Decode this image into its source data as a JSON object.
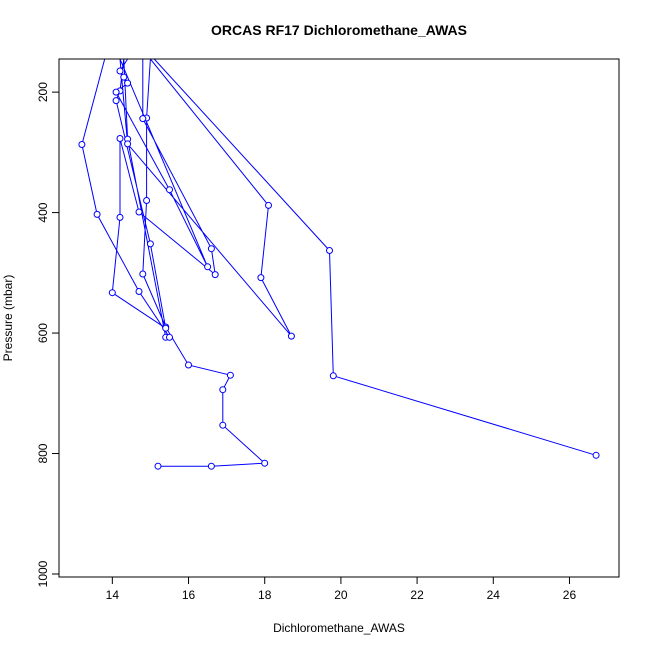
{
  "chart_data": {
    "type": "line",
    "title": "ORCAS RF17 Dichloromethane_AWAS",
    "xlabel": "Dichloromethane_AWAS",
    "ylabel": "Pressure (mbar)",
    "xlim": [
      12.6,
      27.3
    ],
    "ylim": [
      1005,
      145
    ],
    "y_reversed": true,
    "x_ticks": [
      14,
      16,
      18,
      20,
      22,
      24,
      26
    ],
    "y_ticks": [
      200,
      400,
      600,
      800,
      1000
    ],
    "grid": false,
    "legend": "none",
    "series": [
      {
        "color": "#0000ff",
        "marker": "open-circle",
        "points": [
          [
            15.2,
            821
          ],
          [
            16.6,
            821
          ],
          [
            18.0,
            816
          ],
          [
            16.9,
            753
          ],
          [
            16.9,
            694
          ],
          [
            17.1,
            670
          ],
          [
            16.0,
            653
          ],
          [
            15.4,
            590
          ],
          [
            14.8,
            502
          ],
          [
            14.9,
            380
          ],
          [
            14.9,
            243
          ],
          [
            15.0,
            145
          ],
          [
            14.3,
            145
          ],
          [
            14.4,
            278
          ],
          [
            15.4,
            607
          ],
          [
            15.5,
            607
          ],
          [
            14.7,
            531
          ],
          [
            13.6,
            403
          ],
          [
            13.2,
            287
          ],
          [
            13.8,
            145
          ],
          [
            14.8,
            145
          ],
          [
            14.8,
            244
          ],
          [
            16.6,
            460
          ],
          [
            16.7,
            503
          ],
          [
            14.7,
            399
          ],
          [
            14.2,
            277
          ],
          [
            14.2,
            408
          ],
          [
            14.0,
            533
          ],
          [
            15.4,
            592
          ],
          [
            15.0,
            452
          ],
          [
            14.1,
            214
          ],
          [
            14.2,
            198
          ],
          [
            14.3,
            145
          ],
          [
            14.4,
            145
          ],
          [
            14.2,
            165
          ],
          [
            14.3,
            175
          ],
          [
            14.4,
            185
          ],
          [
            14.1,
            200
          ],
          [
            15.5,
            362
          ],
          [
            16.5,
            490
          ],
          [
            14.2,
            145
          ],
          [
            15.0,
            145
          ],
          [
            18.1,
            388
          ],
          [
            17.9,
            508
          ],
          [
            18.7,
            605
          ],
          [
            14.4,
            286
          ],
          [
            14.2,
            145
          ],
          [
            15.1,
            145
          ],
          [
            19.7,
            463
          ],
          [
            19.8,
            671
          ],
          [
            26.7,
            803
          ]
        ]
      }
    ]
  }
}
